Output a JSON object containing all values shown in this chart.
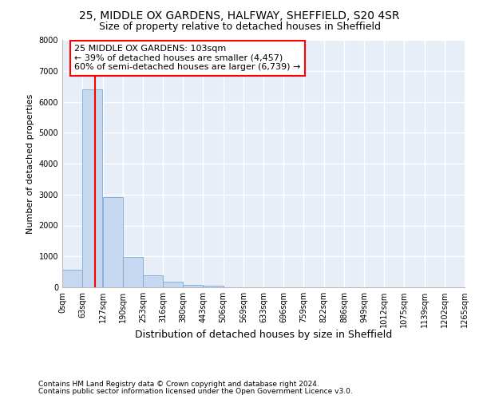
{
  "title_line1": "25, MIDDLE OX GARDENS, HALFWAY, SHEFFIELD, S20 4SR",
  "title_line2": "Size of property relative to detached houses in Sheffield",
  "xlabel": "Distribution of detached houses by size in Sheffield",
  "ylabel": "Number of detached properties",
  "footer_line1": "Contains HM Land Registry data © Crown copyright and database right 2024.",
  "footer_line2": "Contains public sector information licensed under the Open Government Licence v3.0.",
  "annotation_line1": "25 MIDDLE OX GARDENS: 103sqm",
  "annotation_line2": "← 39% of detached houses are smaller (4,457)",
  "annotation_line3": "60% of semi-detached houses are larger (6,739) →",
  "bar_color": "#c5d8f0",
  "bar_edge_color": "#7aaad4",
  "vline_color": "red",
  "vline_x": 103,
  "bin_edges": [
    0,
    63,
    127,
    190,
    253,
    316,
    380,
    443,
    506,
    569,
    633,
    696,
    759,
    822,
    886,
    949,
    1012,
    1075,
    1139,
    1202,
    1265
  ],
  "bin_labels": [
    "0sqm",
    "63sqm",
    "127sqm",
    "190sqm",
    "253sqm",
    "316sqm",
    "380sqm",
    "443sqm",
    "506sqm",
    "569sqm",
    "633sqm",
    "696sqm",
    "759sqm",
    "822sqm",
    "886sqm",
    "949sqm",
    "1012sqm",
    "1075sqm",
    "1139sqm",
    "1202sqm",
    "1265sqm"
  ],
  "bar_heights": [
    560,
    6400,
    2920,
    970,
    390,
    170,
    90,
    40,
    0,
    0,
    0,
    0,
    0,
    0,
    0,
    0,
    0,
    0,
    0,
    0
  ],
  "ylim": [
    0,
    8000
  ],
  "yticks": [
    0,
    1000,
    2000,
    3000,
    4000,
    5000,
    6000,
    7000,
    8000
  ],
  "background_color": "#e8eef8",
  "grid_color": "white",
  "annotation_box_color": "white",
  "annotation_box_edge_color": "red",
  "title1_fontsize": 10,
  "title2_fontsize": 9,
  "ylabel_fontsize": 8,
  "xlabel_fontsize": 9,
  "tick_fontsize": 7,
  "annotation_fontsize": 8,
  "footer_fontsize": 6.5
}
